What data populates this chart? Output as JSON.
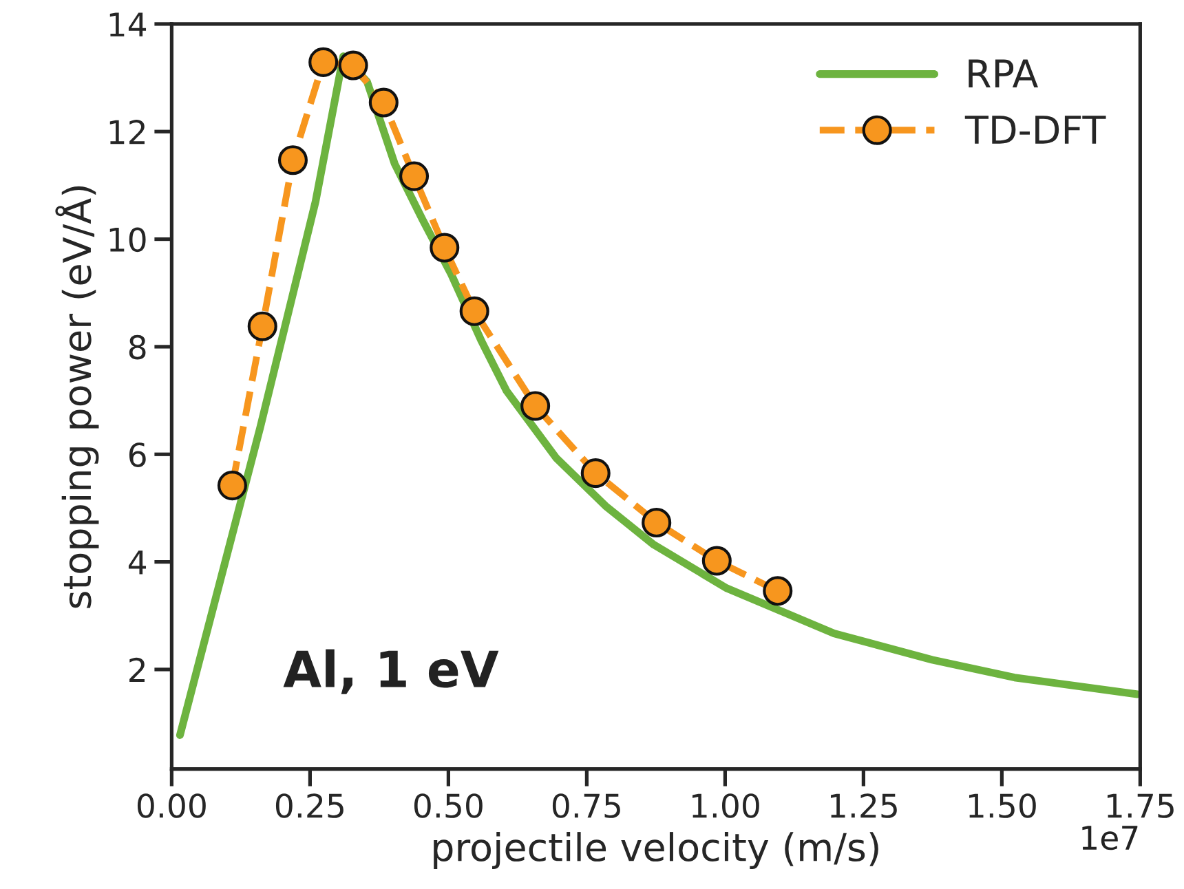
{
  "chart_data": {
    "type": "line",
    "xlabel": "projectile velocity (m/s)",
    "ylabel": "stopping power (eV/Å)",
    "xlim": [
      0,
      1.75
    ],
    "ylim": [
      0.15,
      14
    ],
    "xticks": [
      {
        "value": 0,
        "label": "0.00"
      },
      0.25,
      {
        "value": 0.5,
        "label": "0.50"
      },
      0.75,
      {
        "value": 1,
        "label": "1.00"
      },
      1.25,
      {
        "value": 1.5,
        "label": "1.50"
      },
      1.75
    ],
    "yticks": [
      2,
      4,
      6,
      8,
      10,
      12,
      14
    ],
    "series": [
      {
        "name": "RPA",
        "color": "#6db33f",
        "line_style": "solid",
        "marker": "none",
        "x": [
          0.015,
          0.16,
          0.26,
          0.31,
          0.353,
          0.403,
          0.453,
          0.505,
          0.56,
          0.605,
          0.695,
          0.784,
          0.871,
          1.003,
          1.197,
          1.374,
          1.523,
          1.745
        ],
        "values": [
          0.78,
          6.5,
          10.7,
          13.4,
          12.93,
          11.4,
          10.37,
          9.35,
          8.1,
          7.18,
          5.93,
          5.04,
          4.32,
          3.51,
          2.67,
          2.18,
          1.85,
          1.54
        ]
      },
      {
        "name": "TD-DFT",
        "color": "#f7961e",
        "line_style": "dashed",
        "marker": "circle",
        "x": [
          0.1095,
          0.164,
          0.219,
          0.274,
          0.328,
          0.383,
          0.438,
          0.493,
          0.547,
          0.657,
          0.766,
          0.876,
          0.985,
          1.095
        ],
        "values": [
          5.42,
          8.38,
          11.47,
          13.29,
          13.23,
          12.54,
          11.17,
          9.84,
          8.66,
          6.9,
          5.65,
          4.73,
          4.02,
          3.46
        ]
      }
    ],
    "annotations": [
      "Al, 1 eV",
      "1e7"
    ],
    "legend": "top right",
    "grid": false
  }
}
